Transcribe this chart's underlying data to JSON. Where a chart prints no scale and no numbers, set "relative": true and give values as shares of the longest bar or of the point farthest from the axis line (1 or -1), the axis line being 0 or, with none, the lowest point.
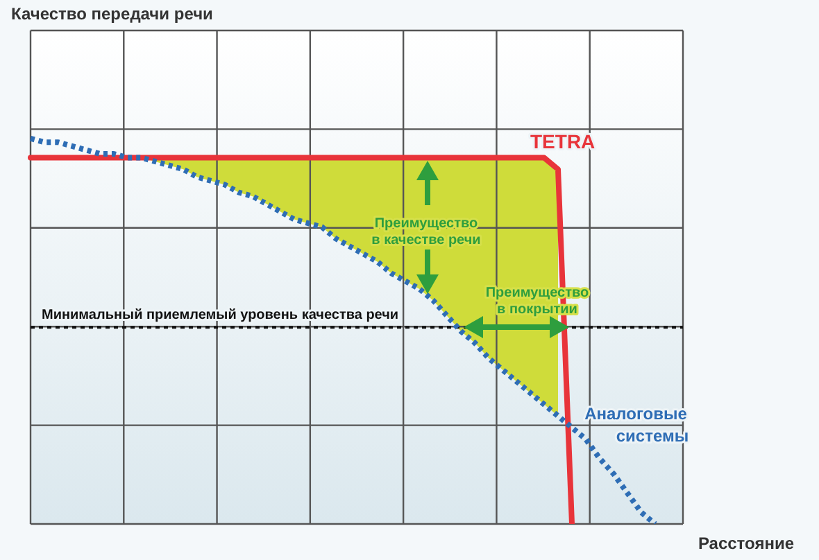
{
  "chart_data": {
    "type": "line",
    "relative": true,
    "xlabel": "Расстояние",
    "grid": true,
    "legend": false,
    "marker": "none",
    "categories": [
      null,
      null,
      null,
      null,
      null,
      null,
      null,
      null,
      null,
      null,
      null,
      null,
      null,
      null,
      null,
      null,
      null,
      null,
      null,
      null,
      null,
      null,
      null,
      null,
      null,
      null,
      null,
      null,
      null,
      null,
      null,
      null,
      null,
      null,
      null,
      null,
      null,
      null,
      null,
      null,
      null,
      null,
      null,
      null,
      null,
      null,
      null,
      null
    ],
    "series": [
      {
        "name": "TETRA",
        "color": "#e8343a",
        "line_style": "solid",
        "lower": [
          null,
          null,
          null,
          null,
          null,
          null,
          null,
          0.95,
          0.95,
          0.94,
          0.93,
          0.92,
          0.9,
          0.89,
          0.88,
          0.86,
          0.85,
          0.83,
          0.81,
          0.79,
          0.78,
          0.77,
          0.74,
          0.72,
          0.7,
          0.68,
          0.65,
          0.63,
          0.61,
          0.58,
          0.54,
          0.5,
          0.47,
          0.43,
          0.4,
          0.37,
          0.34,
          0.31,
          0.28,
          null,
          null,
          null,
          null,
          null,
          null,
          null,
          null,
          null
        ],
        "upper": [
          null,
          null,
          null,
          null,
          null,
          null,
          null,
          0.95,
          0.95,
          0.95,
          0.95,
          0.95,
          0.95,
          0.95,
          0.95,
          0.95,
          0.95,
          0.95,
          0.95,
          0.95,
          0.95,
          0.95,
          0.95,
          0.95,
          0.95,
          0.95,
          0.95,
          0.95,
          0.95,
          0.95,
          0.95,
          0.95,
          0.95,
          0.95,
          0.95,
          0.95,
          0.95,
          0.95,
          0.92,
          null,
          null,
          null,
          null,
          null,
          null,
          null,
          null,
          null
        ],
        "values": [
          0.95,
          0.95,
          0.95,
          0.95,
          0.95,
          0.95,
          0.95,
          0.95,
          0.95,
          0.95,
          0.95,
          0.95,
          0.95,
          0.95,
          0.95,
          0.95,
          0.95,
          0.95,
          0.95,
          0.95,
          0.95,
          0.95,
          0.95,
          0.95,
          0.95,
          0.95,
          0.95,
          0.95,
          0.95,
          0.95,
          0.95,
          0.95,
          0.95,
          0.95,
          0.95,
          0.95,
          0.95,
          0.95,
          0.92,
          0,
          null,
          null,
          null,
          null,
          null,
          null,
          null,
          null
        ]
      },
      {
        "name": "Аналоговые системы",
        "color": "#2e6db5",
        "line_style": "dotted",
        "values": [
          1.0,
          0.99,
          0.99,
          0.98,
          0.97,
          0.96,
          0.96,
          0.95,
          0.95,
          0.94,
          0.93,
          0.92,
          0.9,
          0.89,
          0.88,
          0.86,
          0.85,
          0.83,
          0.81,
          0.79,
          0.78,
          0.77,
          0.74,
          0.72,
          0.7,
          0.68,
          0.65,
          0.63,
          0.61,
          0.58,
          0.54,
          0.5,
          0.47,
          0.43,
          0.4,
          0.37,
          0.34,
          0.31,
          0.28,
          0.25,
          0.22,
          0.17,
          0.13,
          0.08,
          0.03,
          0,
          null,
          null
        ]
      }
    ],
    "ref_lines": [
      {
        "axis": "y",
        "value": 0.51,
        "label": "Минимальный приемлемый уровень качества речи",
        "color": "#111111",
        "line_style": "dotted"
      }
    ],
    "annotations": [
      "Качество передачи речи",
      "Преимущество в качестве речи",
      "Преимущество в покрытии"
    ]
  }
}
